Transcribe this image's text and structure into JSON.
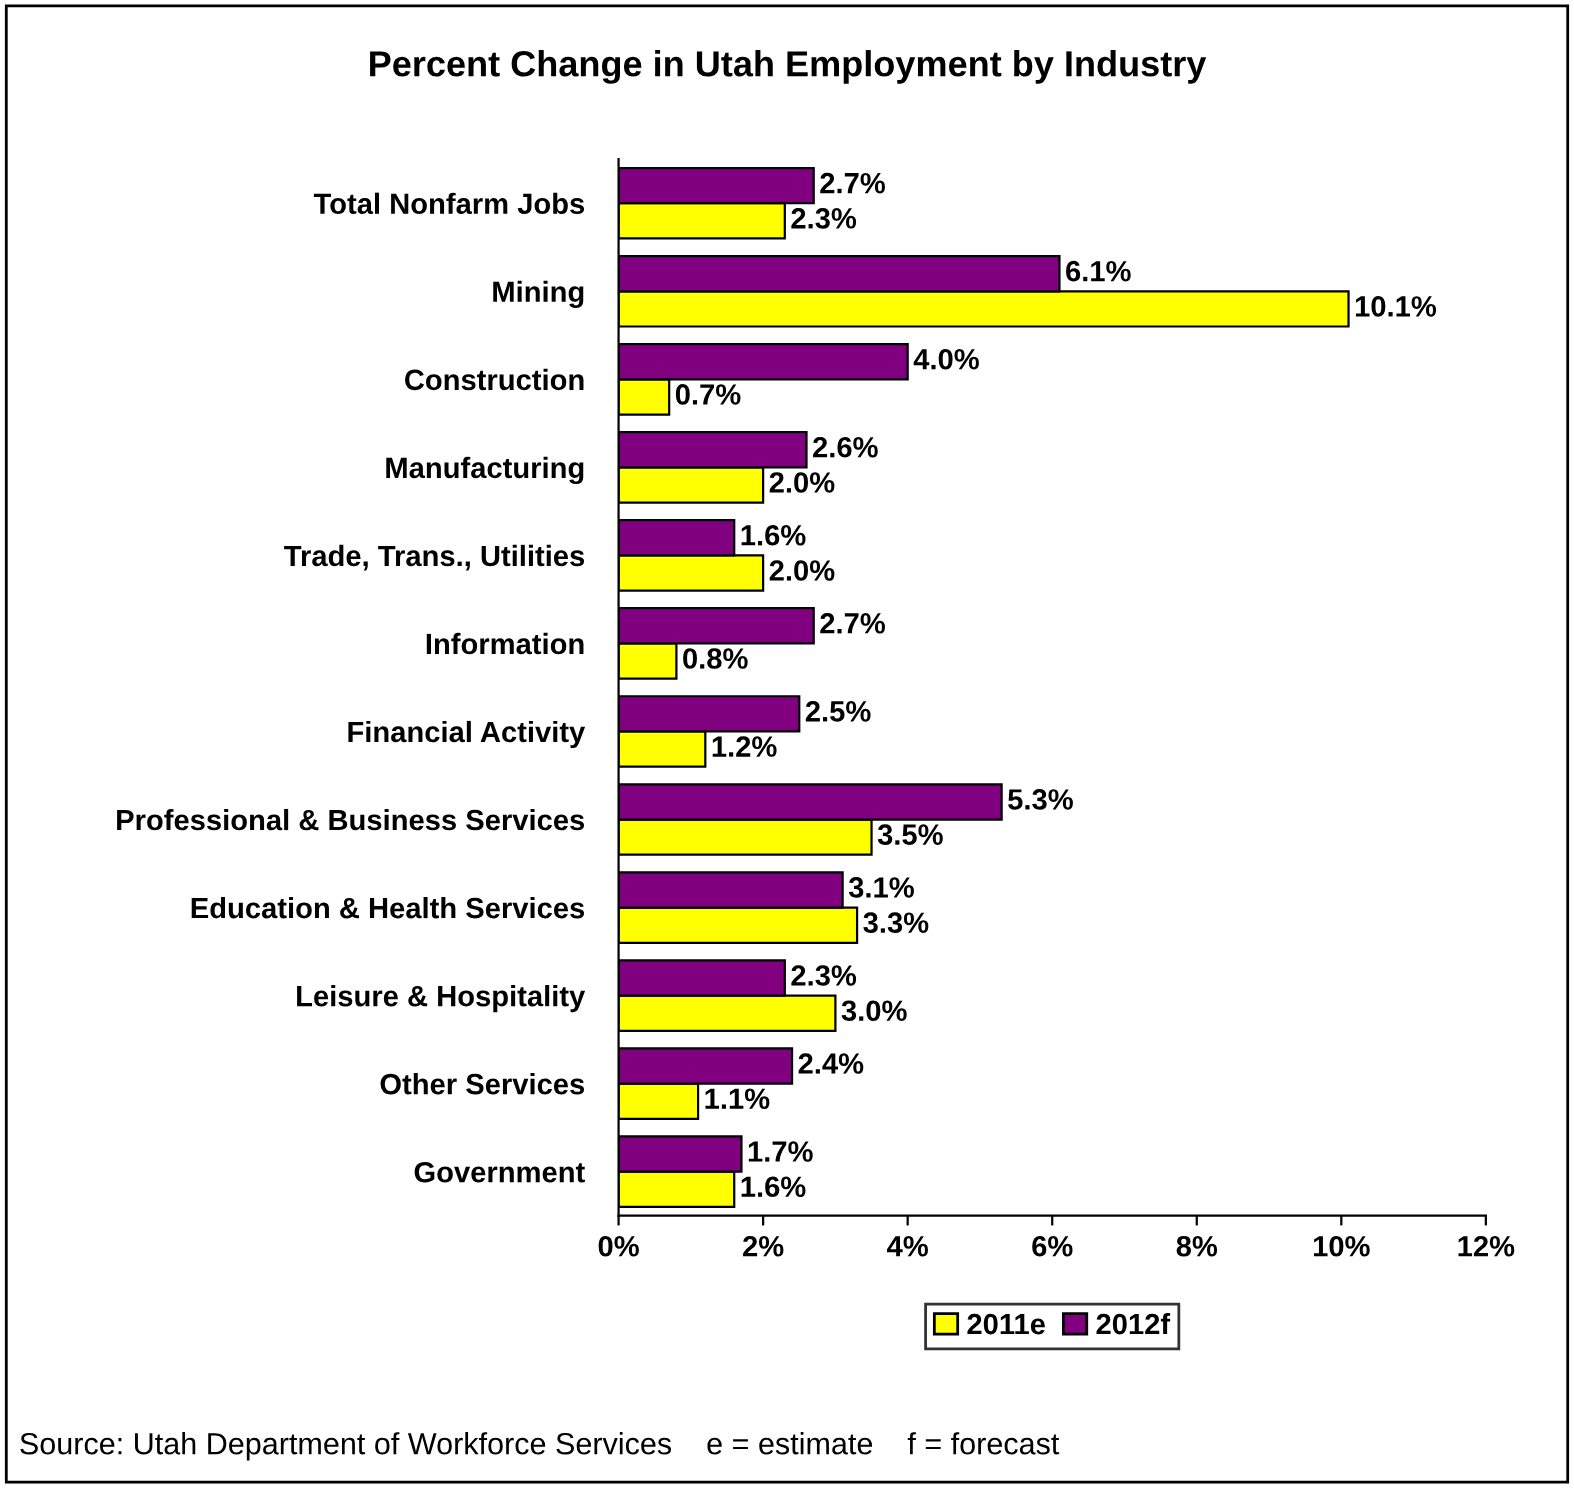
{
  "chart_data": {
    "type": "bar",
    "orientation": "horizontal",
    "title": "Percent Change in Utah Employment by Industry",
    "categories": [
      "Total Nonfarm Jobs",
      "Mining",
      "Construction",
      "Manufacturing",
      "Trade, Trans., Utilities",
      "Information",
      "Financial Activity",
      "Professional & Business Services",
      "Education & Health Services",
      "Leisure & Hospitality",
      "Other Services",
      "Government"
    ],
    "series": [
      {
        "name": "2011e",
        "color": "#ffff00",
        "values": [
          2.3,
          10.1,
          0.7,
          2.0,
          2.0,
          0.8,
          1.2,
          3.5,
          3.3,
          3.0,
          1.1,
          1.6
        ],
        "value_labels": [
          "2.3%",
          "10.1%",
          "0.7%",
          "2.0%",
          "2.0%",
          "0.8%",
          "1.2%",
          "3.5%",
          "3.3%",
          "3.0%",
          "1.1%",
          "1.6%"
        ]
      },
      {
        "name": "2012f",
        "color": "#800080",
        "values": [
          2.7,
          6.1,
          4.0,
          2.6,
          1.6,
          2.7,
          2.5,
          5.3,
          3.1,
          2.3,
          2.4,
          1.7
        ],
        "value_labels": [
          "2.7%",
          "6.1%",
          "4.0%",
          "2.6%",
          "1.6%",
          "2.7%",
          "2.5%",
          "5.3%",
          "3.1%",
          "2.3%",
          "2.4%",
          "1.7%"
        ]
      }
    ],
    "xlim": [
      0,
      12
    ],
    "xticks": [
      {
        "value": 0,
        "label": "0%"
      },
      {
        "value": 2,
        "label": "2%"
      },
      {
        "value": 4,
        "label": "4%"
      },
      {
        "value": 6,
        "label": "6%"
      },
      {
        "value": 8,
        "label": "8%"
      },
      {
        "value": 10,
        "label": "10%"
      },
      {
        "value": 12,
        "label": "12%"
      }
    ],
    "grid": false,
    "legend": "bottom",
    "annotations": [
      "Source: Utah Department of Workforce Services    e = estimate    f = forecast"
    ]
  }
}
